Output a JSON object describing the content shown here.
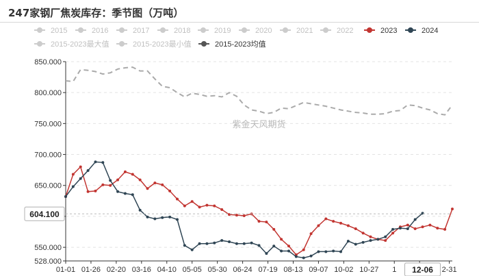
{
  "title": "247家钢厂焦炭库存：季节图（万吨）",
  "chart_data": {
    "type": "line",
    "x_tick_labels": [
      "01-01",
      "01-26",
      "02-20",
      "03-16",
      "04-10",
      "05-05",
      "05-30",
      "06-24",
      "07-19",
      "08-13",
      "09-07",
      "10-02",
      "10-27",
      "1",
      "12-06",
      "2-31"
    ],
    "ylim": [
      528,
      850
    ],
    "y_ticks": [
      528,
      550,
      600,
      650,
      700,
      750,
      800,
      850
    ],
    "y_tick_labels": [
      "528.000",
      "550.000",
      "600.000",
      "650.000",
      "700.000",
      "750.000",
      "800.000",
      "850.000"
    ],
    "grid": "horizontal-dashed",
    "legend_placement": "top",
    "legend": [
      {
        "label": "2015",
        "color": "#cccccc",
        "active": false
      },
      {
        "label": "2016",
        "color": "#cccccc",
        "active": false
      },
      {
        "label": "2017",
        "color": "#cccccc",
        "active": false
      },
      {
        "label": "2018",
        "color": "#cccccc",
        "active": false
      },
      {
        "label": "2019",
        "color": "#cccccc",
        "active": false
      },
      {
        "label": "2020",
        "color": "#cccccc",
        "active": false
      },
      {
        "label": "2021",
        "color": "#cccccc",
        "active": false
      },
      {
        "label": "2022",
        "color": "#cccccc",
        "active": false
      },
      {
        "label": "2023",
        "color": "#c23531",
        "active": true
      },
      {
        "label": "2024",
        "color": "#2f4554",
        "active": true
      },
      {
        "label": "2015-2023最大值",
        "color": "#cccccc",
        "active": false
      },
      {
        "label": "2015-2023最小值",
        "color": "#cccccc",
        "active": false
      },
      {
        "label": "2015-2023均值",
        "color": "#555555",
        "active": true
      }
    ],
    "series": [
      {
        "name": "2023",
        "color": "#c23531",
        "style": "solid",
        "marker": true,
        "x": [
          0,
          1,
          2,
          3,
          4,
          5,
          6,
          7,
          8,
          9,
          10,
          11,
          12,
          13,
          14,
          15,
          16,
          17,
          18,
          19,
          20,
          21,
          22,
          23,
          24,
          25,
          26,
          27,
          28,
          29,
          30,
          31,
          32,
          33,
          34,
          35,
          36,
          37,
          38,
          39,
          40,
          41,
          42,
          43,
          44,
          45,
          46,
          47,
          48,
          49,
          50,
          51,
          52
        ],
        "values": [
          632,
          668,
          680,
          640,
          641,
          651,
          650,
          659,
          672,
          668,
          659,
          645,
          654,
          651,
          641,
          628,
          617,
          624,
          615,
          618,
          617,
          611,
          603,
          602,
          601,
          604,
          592,
          591,
          579,
          563,
          552,
          538,
          546,
          572,
          585,
          596,
          592,
          589,
          585,
          580,
          573,
          567,
          563,
          561,
          573,
          583,
          586,
          580,
          583,
          586,
          581,
          579,
          612
        ]
      },
      {
        "name": "2024",
        "color": "#2f4554",
        "style": "solid",
        "marker": true,
        "x": [
          0,
          1,
          2,
          3,
          4,
          5,
          6,
          7,
          8,
          9,
          10,
          11,
          12,
          13,
          14,
          15,
          16,
          17,
          18,
          19,
          20,
          21,
          22,
          23,
          24,
          25,
          26,
          27,
          28,
          29,
          30,
          31,
          32,
          33,
          34,
          35,
          36,
          37,
          38,
          39,
          40,
          41,
          42,
          43,
          44,
          45,
          46,
          47,
          48
        ],
        "values": [
          632,
          648,
          661,
          674,
          688,
          687,
          658,
          640,
          637,
          635,
          610,
          599,
          596,
          598,
          599,
          595,
          553,
          546,
          556,
          556,
          557,
          561,
          559,
          556,
          556,
          557,
          553,
          540,
          552,
          544,
          544,
          535,
          533,
          536,
          543,
          543,
          544,
          543,
          560,
          555,
          558,
          561,
          563,
          567,
          579,
          581,
          580,
          595,
          605
        ]
      },
      {
        "name": "2015-2023均值",
        "color": "#aaaaaa",
        "style": "dashed",
        "marker": false,
        "x": [
          0,
          1,
          2,
          3,
          4,
          5,
          6,
          7,
          8,
          9,
          10,
          11,
          12,
          13,
          14,
          15,
          16,
          17,
          18,
          19,
          20,
          21,
          22,
          23,
          24,
          25,
          26,
          27,
          28,
          29,
          30,
          31,
          32,
          33,
          34,
          35,
          36,
          37,
          38,
          39,
          40,
          41,
          42,
          43,
          44,
          45,
          46,
          47,
          48,
          49,
          50,
          51,
          52
        ],
        "values": [
          819,
          818,
          837,
          836,
          834,
          830,
          832,
          838,
          840,
          841,
          835,
          835,
          822,
          810,
          808,
          800,
          793,
          799,
          797,
          794,
          795,
          793,
          800,
          794,
          780,
          772,
          770,
          766,
          768,
          775,
          774,
          779,
          784,
          782,
          780,
          778,
          775,
          772,
          770,
          768,
          767,
          765,
          765,
          766,
          770,
          771,
          780,
          779,
          775,
          772,
          766,
          764,
          780
        ]
      }
    ],
    "pointer": {
      "value_label": "604.100",
      "x_label": "12-06",
      "y": 604.1,
      "x": 48
    }
  },
  "watermark": "紫金天风期货"
}
